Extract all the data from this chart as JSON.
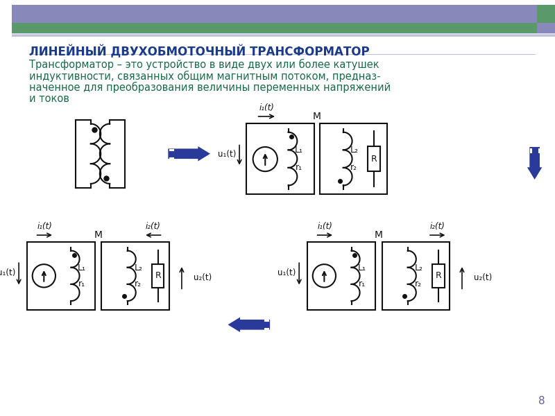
{
  "bg_color": "#ffffff",
  "header_bar1_color": "#8888bb",
  "header_bar2_color": "#5a9a6a",
  "title_text": "ЛИНЕЙНЫЙ ДВУХОБМОТОЧНЫЙ ТРАНСФОРМАТОР",
  "title_color": "#1a3a8a",
  "body_lines": [
    "Трансформатор – это устройство в виде двух или более катушек",
    "индуктивности, связанных общим магнитным потоком, предназ-",
    "наченное для преобразования величины переменных напряжений",
    "и токов"
  ],
  "body_color": "#1a6a4a",
  "circuit_color": "#111111",
  "arrow_color": "#2a3a9a",
  "page_number": "8"
}
